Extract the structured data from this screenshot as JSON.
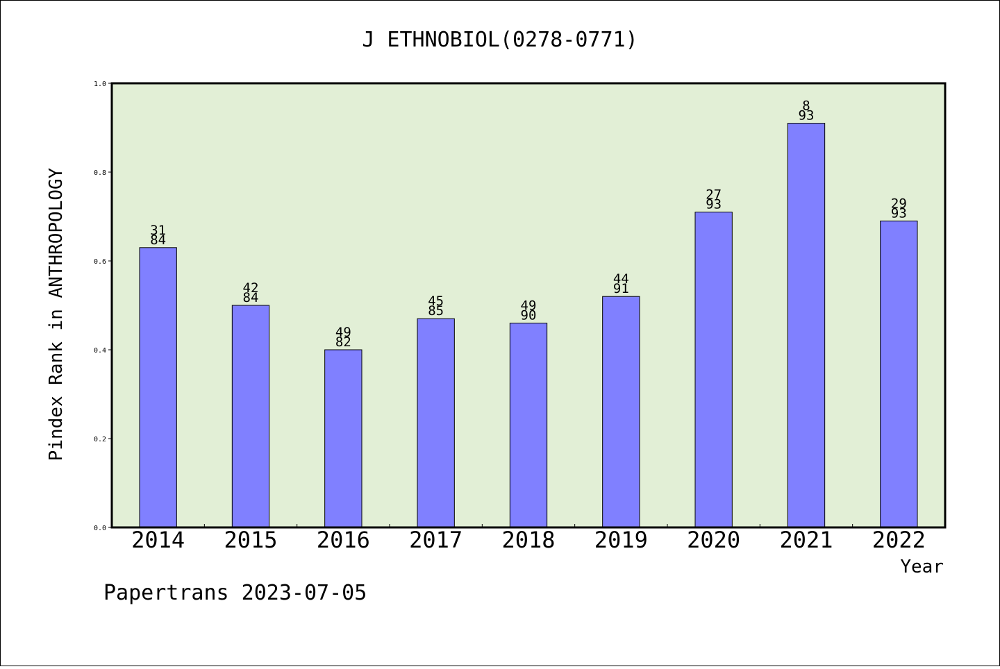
{
  "chart_data": {
    "type": "bar",
    "title": "J ETHNOBIOL(0278-0771)",
    "xlabel": "Year",
    "ylabel": "Pindex Rank in ANTHROPOLOGY",
    "categories": [
      "2014",
      "2015",
      "2016",
      "2017",
      "2018",
      "2019",
      "2020",
      "2021",
      "2022"
    ],
    "values": [
      0.63,
      0.5,
      0.4,
      0.47,
      0.46,
      0.52,
      0.71,
      0.91,
      0.69
    ],
    "labels": [
      {
        "top": "31",
        "bottom": "84"
      },
      {
        "top": "42",
        "bottom": "84"
      },
      {
        "top": "49",
        "bottom": "82"
      },
      {
        "top": "45",
        "bottom": "85"
      },
      {
        "top": "49",
        "bottom": "90"
      },
      {
        "top": "44",
        "bottom": "91"
      },
      {
        "top": "27",
        "bottom": "93"
      },
      {
        "top": "8",
        "bottom": "93"
      },
      {
        "top": "29",
        "bottom": "93"
      }
    ],
    "ylim": [
      0,
      1
    ],
    "yticks": [
      "0.0",
      "0.2",
      "0.4",
      "0.6",
      "0.8",
      "1.0"
    ],
    "colors": {
      "plot_background": "#e2efd6",
      "bar_fill": "#8080ff",
      "bar_stroke": "#000000"
    },
    "grid": false,
    "legend": "none"
  },
  "footer": {
    "text": "Papertrans 2023-07-05"
  }
}
